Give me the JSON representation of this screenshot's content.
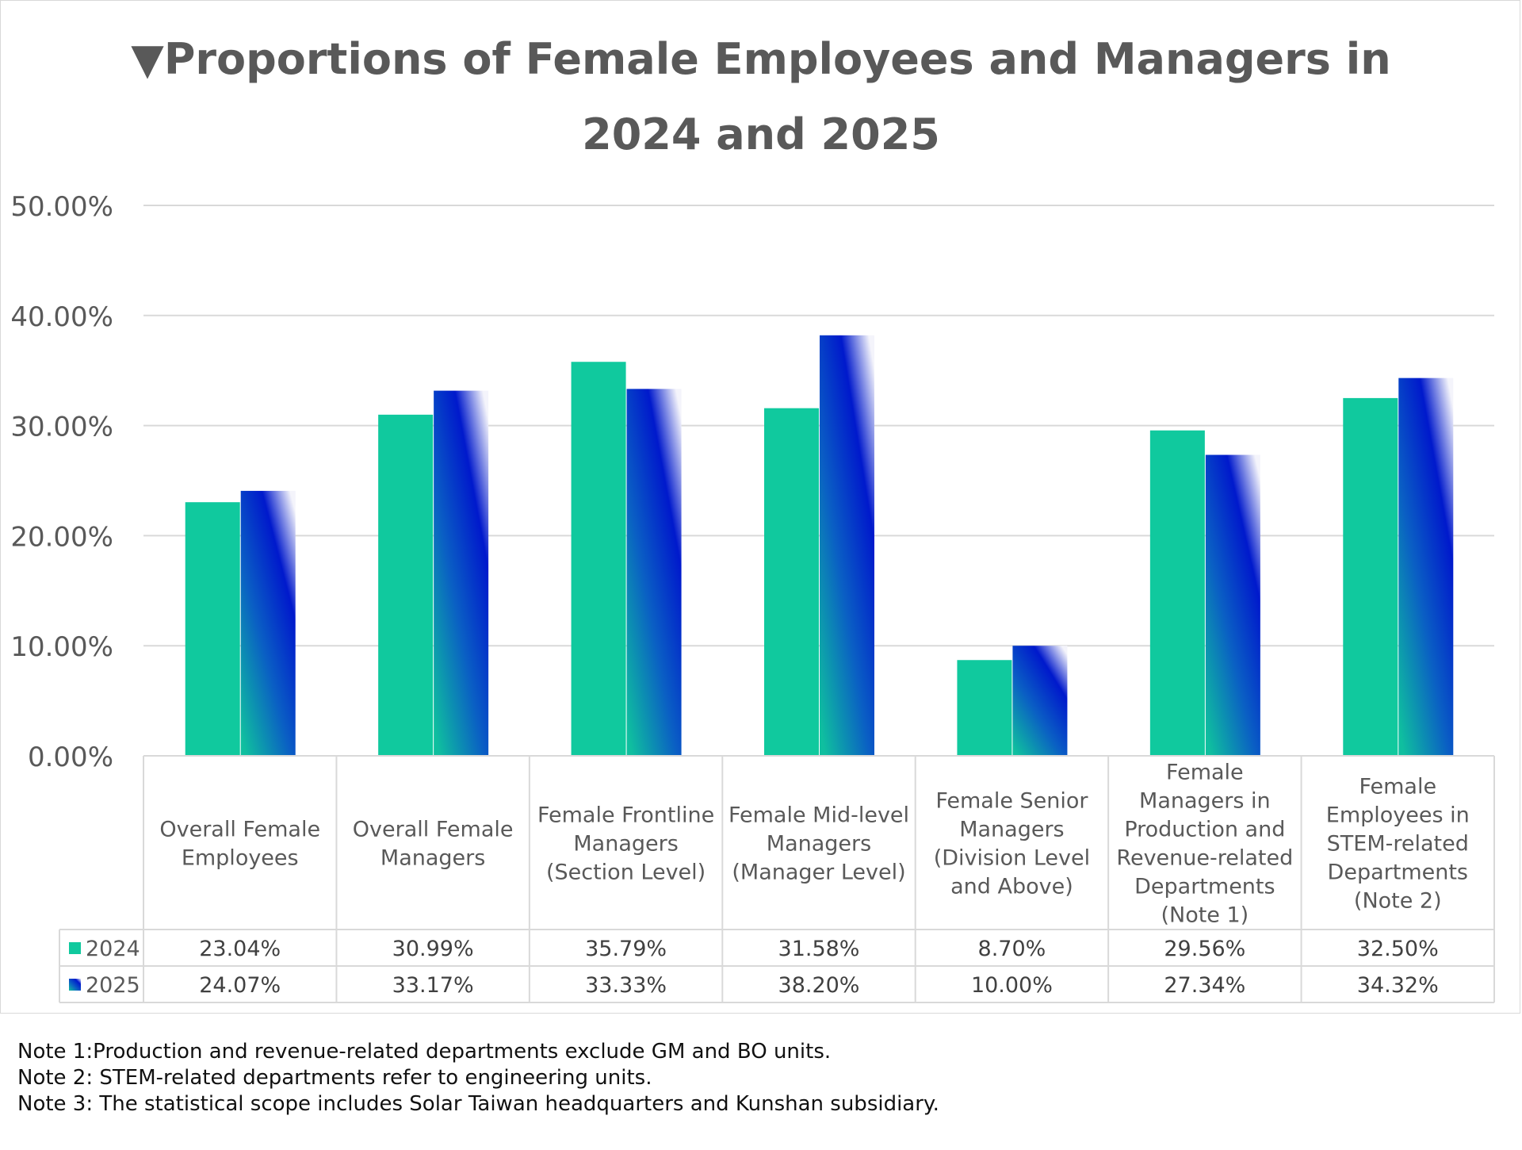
{
  "chart_data": {
    "type": "bar",
    "title_marker": "▼",
    "title_line1": "Proportions of Female Employees and Managers in",
    "title_line2": "2024 and 2025",
    "xlabel": "",
    "ylabel": "",
    "ylim": [
      0,
      50
    ],
    "yticks": [
      0,
      10,
      20,
      30,
      40,
      50
    ],
    "ytick_labels": [
      "0.00%",
      "10.00%",
      "20.00%",
      "30.00%",
      "40.00%",
      "50.00%"
    ],
    "grid": true,
    "legend": "data-table",
    "categories": [
      [
        "Overall Female",
        "Employees"
      ],
      [
        "Overall Female",
        "Managers"
      ],
      [
        "Female Frontline",
        "Managers",
        "(Section Level)"
      ],
      [
        "Female Mid-level",
        "Managers",
        "(Manager Level)"
      ],
      [
        "Female Senior",
        "Managers",
        "(Division Level",
        "and Above)"
      ],
      [
        "Female",
        "Managers in",
        "Production and",
        "Revenue-related",
        "Departments",
        "(Note 1)"
      ],
      [
        "Female",
        "Employees in",
        "STEM-related",
        "Departments",
        "(Note 2)"
      ]
    ],
    "series": [
      {
        "name": "2024",
        "values": [
          23.04,
          30.99,
          35.79,
          31.58,
          8.7,
          29.56,
          32.5
        ],
        "labels": [
          "23.04%",
          "30.99%",
          "35.79%",
          "31.58%",
          "8.70%",
          "29.56%",
          "32.50%"
        ],
        "color": "#10c99e"
      },
      {
        "name": "2025",
        "values": [
          24.07,
          33.17,
          33.33,
          38.2,
          10.0,
          27.34,
          34.32
        ],
        "labels": [
          "24.07%",
          "33.17%",
          "33.33%",
          "38.20%",
          "10.00%",
          "27.34%",
          "34.32%"
        ],
        "gradient": [
          "#f4f4fb",
          "#0019cc",
          "#0a5fc4",
          "#0fbf9f"
        ]
      }
    ]
  },
  "colors": {
    "title": "#595959",
    "axis_text": "#595959",
    "gridline": "#d9d9d9",
    "table_text": "#404040"
  },
  "notes": [
    "Note 1:Production and revenue-related departments exclude GM and BO units.",
    "Note 2: STEM-related departments refer to engineering units.",
    "Note 3: The statistical scope includes Solar Taiwan headquarters and Kunshan subsidiary."
  ]
}
